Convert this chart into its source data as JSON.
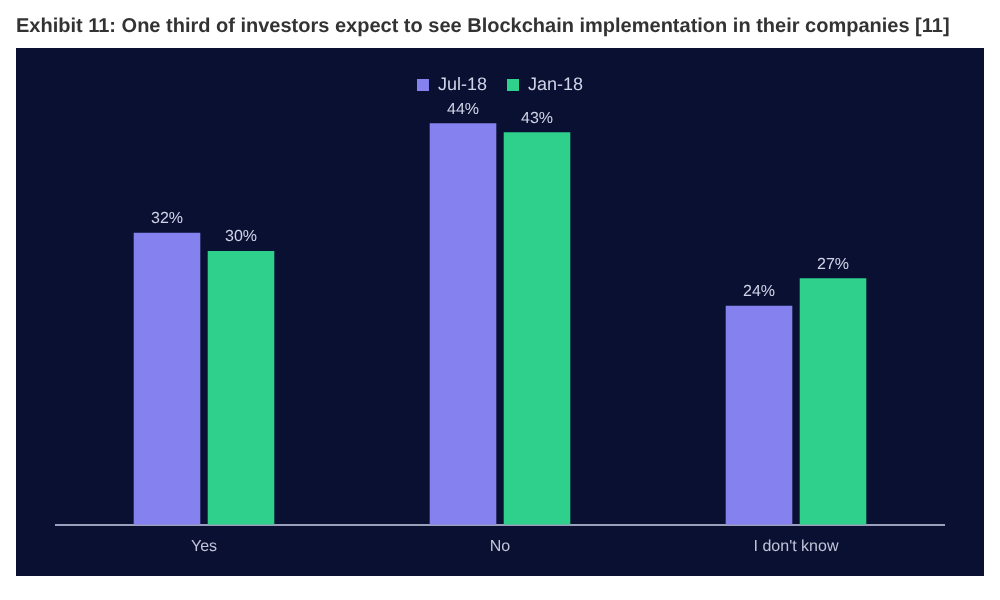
{
  "chart_data": {
    "type": "bar",
    "title": "Exhibit 11: One third of investors expect to see Blockchain implementation in their companies [11]",
    "categories": [
      "Yes",
      "No",
      "I don't know"
    ],
    "series": [
      {
        "name": "Jul-18",
        "color": "#8582f0",
        "values": [
          32,
          44,
          24
        ],
        "value_labels": [
          "32%",
          "44%",
          "24%"
        ]
      },
      {
        "name": "Jan-18",
        "color": "#2fcf8c",
        "values": [
          30,
          43,
          27
        ],
        "value_labels": [
          "30%",
          "43%",
          "27%"
        ]
      }
    ],
    "legend": "top",
    "grid": false
  }
}
